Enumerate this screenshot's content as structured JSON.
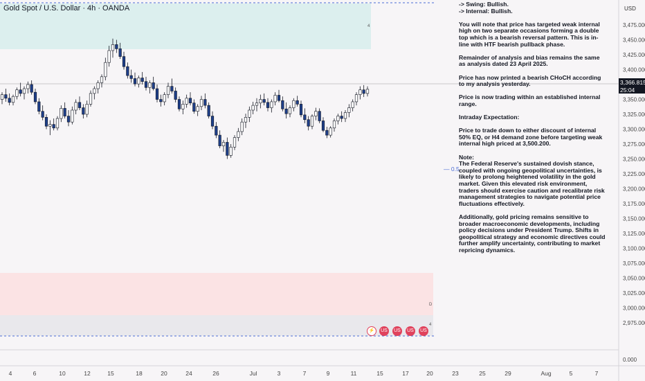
{
  "header": {
    "symbol": "Gold Spot / U.S. Dollar · 4h · OANDA"
  },
  "price_scale": {
    "currency": "USD",
    "labels": [
      "3,475.000",
      "3,450.000",
      "3,425.000",
      "3,400.000",
      "3,375.000",
      "3,350.000",
      "3,325.000",
      "3,300.000",
      "3,275.000",
      "3,250.000",
      "3,225.000",
      "3,200.000",
      "3,175.000",
      "3,150.000",
      "3,125.000",
      "3,100.000",
      "3,075.000",
      "3,050.000",
      "3,025.000",
      "3,000.000",
      "2,975.000"
    ],
    "current_price": "3,366.815",
    "countdown": "25:04",
    "indicator_zero": "0.000"
  },
  "fib_level": {
    "label": "— 0.5"
  },
  "zone_markers": {
    "upper": "4",
    "lower_d": "D",
    "lower_4": "4"
  },
  "time_axis": [
    "4",
    "6",
    "10",
    "12",
    "15",
    "18",
    "20",
    "24",
    "26",
    "Jul",
    "3",
    "7",
    "9",
    "11",
    "15",
    "17",
    "20",
    "23",
    "25",
    "29",
    "Aug",
    "5",
    "7"
  ],
  "notes": [
    "-> Swing:  Bullish.\n-> Internal:  Bullish.",
    "You will note that price has targeted weak internal high on two separate occasions forming a double top which is a bearish reversal pattern. This is in-line with HTF bearish pullback phase.",
    "Remainder of analysis and bias remains the same as analysis dated 23 April 2025.",
    "Price has now printed a bearish CHoCH according to my analysis yesterday.",
    "Price is now trading within an established internal range.",
    "Intraday Expectation:",
    "Price to trade down to either discount of internal 50% EQ, or H4 demand zone before targeting weak internal high priced at 3,500.200.",
    "Note:\nThe Federal Reserve's sustained dovish stance, coupled with ongoing geopolitical uncertainties, is likely to prolong heightened volatility in the gold market. Given this elevated risk environment, traders should exercise caution and recalibrate risk management strategies to navigate potential price fluctuations effectively.",
    "Additionally, gold pricing remains sensitive to broader macroeconomic developments, including policy decisions under President Trump. Shifts in geopolitical strategy and economic directives could further amplify uncertainty, contributing to market repricing dynamics."
  ],
  "colors": {
    "bull": "#ffffff",
    "bear": "#1e3f8a",
    "wick": "#131722",
    "supply_zone": "#dcefee",
    "demand_zone": "#fbe3e4",
    "gray_zone": "#e9e8ec",
    "dash_line": "#4a6cd4"
  },
  "chart_data": {
    "type": "candlestick",
    "title": "Gold Spot / U.S. Dollar · 4h · OANDA",
    "xlabel": "",
    "ylabel": "",
    "ylim": [
      2960,
      3485
    ],
    "grid": false,
    "current_price": 3366.815,
    "zones": [
      {
        "name": "H4 supply",
        "from": 3425,
        "to": 3485
      },
      {
        "name": "H4 demand",
        "from": 3012,
        "to": 3054
      },
      {
        "name": "lower zone",
        "from": 2982,
        "to": 3012
      }
    ],
    "candles": [
      [
        3350,
        3362,
        3342,
        3358
      ],
      [
        3358,
        3368,
        3346,
        3352
      ],
      [
        3352,
        3360,
        3340,
        3345
      ],
      [
        3345,
        3358,
        3340,
        3355
      ],
      [
        3355,
        3370,
        3350,
        3366
      ],
      [
        3366,
        3378,
        3355,
        3360
      ],
      [
        3360,
        3372,
        3350,
        3368
      ],
      [
        3368,
        3380,
        3360,
        3375
      ],
      [
        3375,
        3382,
        3358,
        3362
      ],
      [
        3362,
        3368,
        3342,
        3346
      ],
      [
        3346,
        3352,
        3325,
        3330
      ],
      [
        3330,
        3340,
        3315,
        3320
      ],
      [
        3320,
        3325,
        3300,
        3305
      ],
      [
        3305,
        3315,
        3290,
        3308
      ],
      [
        3308,
        3318,
        3298,
        3302
      ],
      [
        3302,
        3322,
        3298,
        3318
      ],
      [
        3318,
        3340,
        3312,
        3335
      ],
      [
        3335,
        3345,
        3318,
        3322
      ],
      [
        3322,
        3332,
        3305,
        3312
      ],
      [
        3312,
        3338,
        3308,
        3332
      ],
      [
        3332,
        3350,
        3325,
        3345
      ],
      [
        3345,
        3355,
        3332,
        3336
      ],
      [
        3336,
        3342,
        3318,
        3325
      ],
      [
        3325,
        3348,
        3320,
        3342
      ],
      [
        3342,
        3365,
        3338,
        3360
      ],
      [
        3360,
        3372,
        3350,
        3368
      ],
      [
        3368,
        3382,
        3360,
        3378
      ],
      [
        3378,
        3392,
        3370,
        3388
      ],
      [
        3388,
        3420,
        3382,
        3412
      ],
      [
        3412,
        3440,
        3405,
        3432
      ],
      [
        3432,
        3452,
        3420,
        3442
      ],
      [
        3442,
        3450,
        3428,
        3435
      ],
      [
        3435,
        3445,
        3418,
        3422
      ],
      [
        3422,
        3430,
        3400,
        3405
      ],
      [
        3405,
        3412,
        3385,
        3390
      ],
      [
        3390,
        3400,
        3378,
        3385
      ],
      [
        3385,
        3395,
        3372,
        3376
      ],
      [
        3376,
        3390,
        3370,
        3386
      ],
      [
        3386,
        3396,
        3375,
        3380
      ],
      [
        3380,
        3388,
        3365,
        3370
      ],
      [
        3370,
        3382,
        3360,
        3378
      ],
      [
        3378,
        3388,
        3365,
        3368
      ],
      [
        3368,
        3375,
        3345,
        3350
      ],
      [
        3350,
        3358,
        3338,
        3346
      ],
      [
        3346,
        3362,
        3340,
        3358
      ],
      [
        3358,
        3378,
        3352,
        3372
      ],
      [
        3372,
        3385,
        3360,
        3364
      ],
      [
        3364,
        3370,
        3345,
        3350
      ],
      [
        3350,
        3355,
        3330,
        3334
      ],
      [
        3334,
        3348,
        3325,
        3342
      ],
      [
        3342,
        3358,
        3336,
        3352
      ],
      [
        3352,
        3362,
        3340,
        3344
      ],
      [
        3344,
        3350,
        3326,
        3330
      ],
      [
        3330,
        3342,
        3322,
        3338
      ],
      [
        3338,
        3356,
        3332,
        3350
      ],
      [
        3350,
        3360,
        3335,
        3340
      ],
      [
        3340,
        3345,
        3318,
        3322
      ],
      [
        3322,
        3330,
        3300,
        3305
      ],
      [
        3305,
        3312,
        3285,
        3290
      ],
      [
        3290,
        3298,
        3268,
        3272
      ],
      [
        3272,
        3282,
        3262,
        3278
      ],
      [
        3278,
        3286,
        3250,
        3256
      ],
      [
        3256,
        3275,
        3252,
        3270
      ],
      [
        3270,
        3290,
        3265,
        3286
      ],
      [
        3286,
        3302,
        3280,
        3296
      ],
      [
        3296,
        3318,
        3290,
        3312
      ],
      [
        3312,
        3326,
        3302,
        3320
      ],
      [
        3320,
        3338,
        3312,
        3332
      ],
      [
        3332,
        3346,
        3325,
        3340
      ],
      [
        3340,
        3352,
        3330,
        3344
      ],
      [
        3344,
        3358,
        3335,
        3350
      ],
      [
        3350,
        3360,
        3340,
        3345
      ],
      [
        3345,
        3352,
        3330,
        3336
      ],
      [
        3336,
        3350,
        3328,
        3346
      ],
      [
        3346,
        3362,
        3340,
        3357
      ],
      [
        3357,
        3366,
        3345,
        3348
      ],
      [
        3348,
        3355,
        3330,
        3334
      ],
      [
        3334,
        3345,
        3318,
        3326
      ],
      [
        3326,
        3340,
        3320,
        3336
      ],
      [
        3336,
        3352,
        3330,
        3348
      ],
      [
        3348,
        3356,
        3338,
        3342
      ],
      [
        3342,
        3348,
        3320,
        3324
      ],
      [
        3324,
        3335,
        3310,
        3316
      ],
      [
        3316,
        3322,
        3298,
        3305
      ],
      [
        3305,
        3325,
        3300,
        3322
      ],
      [
        3322,
        3336,
        3315,
        3330
      ],
      [
        3330,
        3335,
        3310,
        3314
      ],
      [
        3314,
        3320,
        3295,
        3298
      ],
      [
        3298,
        3304,
        3285,
        3290
      ],
      [
        3290,
        3305,
        3286,
        3302
      ],
      [
        3302,
        3318,
        3296,
        3314
      ],
      [
        3314,
        3326,
        3308,
        3322
      ],
      [
        3322,
        3330,
        3312,
        3318
      ],
      [
        3318,
        3332,
        3312,
        3328
      ],
      [
        3328,
        3342,
        3320,
        3336
      ],
      [
        3336,
        3350,
        3330,
        3346
      ],
      [
        3346,
        3362,
        3340,
        3358
      ],
      [
        3358,
        3372,
        3350,
        3366
      ],
      [
        3366,
        3374,
        3354,
        3360
      ],
      [
        3360,
        3372,
        3355,
        3367
      ]
    ]
  }
}
